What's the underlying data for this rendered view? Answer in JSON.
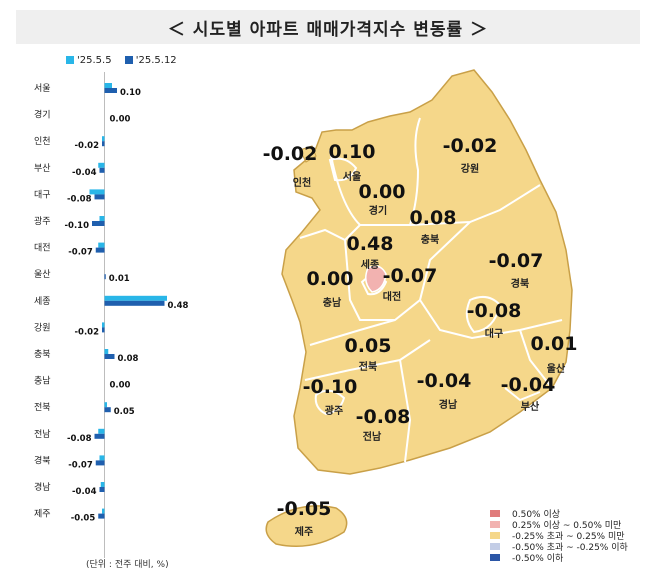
{
  "title": "＜ 시도별 아파트 매매가격지수 변동률 ＞",
  "colors": {
    "series_prev": "#29b6e8",
    "series_curr": "#1f5fae",
    "map_fill": "#f5d78a",
    "map_stroke": "#c9a048",
    "sejong_fill": "#f2b2b0",
    "province_border": "#ffffff"
  },
  "chart_data": [
    {
      "type": "bar",
      "orientation": "horizontal",
      "categories": [
        "서울",
        "경기",
        "인천",
        "부산",
        "대구",
        "광주",
        "대전",
        "울산",
        "세종",
        "강원",
        "충북",
        "충남",
        "전북",
        "전남",
        "경북",
        "경남",
        "제주"
      ],
      "series": [
        {
          "name": "'25.5.5",
          "values": [
            0.06,
            0.0,
            -0.02,
            -0.05,
            -0.12,
            -0.04,
            -0.05,
            0.0,
            0.5,
            -0.02,
            0.03,
            0.0,
            0.02,
            -0.05,
            -0.04,
            -0.03,
            -0.02
          ]
        },
        {
          "name": "'25.5.12",
          "values": [
            0.1,
            0.0,
            -0.02,
            -0.04,
            -0.08,
            -0.1,
            -0.07,
            0.01,
            0.48,
            -0.02,
            0.08,
            0.0,
            0.05,
            -0.08,
            -0.07,
            -0.04,
            -0.05
          ]
        }
      ],
      "value_labels": [
        "0.10",
        "0.00",
        "-0.02",
        "-0.04",
        "-0.08",
        "-0.10",
        "-0.07",
        "0.01",
        "0.48",
        "-0.02",
        "0.08",
        "0.00",
        "0.05",
        "-0.08",
        "-0.07",
        "-0.04",
        "-0.05"
      ],
      "note": "(단위 : 전주 대비, %)"
    }
  ],
  "map": {
    "regions": [
      {
        "name": "서울",
        "value": "0.10"
      },
      {
        "name": "인천",
        "value": "-0.02"
      },
      {
        "name": "경기",
        "value": "0.00"
      },
      {
        "name": "강원",
        "value": "-0.02"
      },
      {
        "name": "충북",
        "value": "0.08"
      },
      {
        "name": "세종",
        "value": "0.48"
      },
      {
        "name": "대전",
        "value": "-0.07"
      },
      {
        "name": "충남",
        "value": "0.00"
      },
      {
        "name": "경북",
        "value": "-0.07"
      },
      {
        "name": "대구",
        "value": "-0.08"
      },
      {
        "name": "전북",
        "value": "0.05"
      },
      {
        "name": "울산",
        "value": "0.01"
      },
      {
        "name": "광주",
        "value": "-0.10"
      },
      {
        "name": "전남",
        "value": "-0.08"
      },
      {
        "name": "경남",
        "value": "-0.04"
      },
      {
        "name": "부산",
        "value": "-0.04"
      },
      {
        "name": "제주",
        "value": "-0.05"
      }
    ],
    "legend": [
      {
        "label": "0.50% 이상",
        "color": "#e07b7b"
      },
      {
        "label": "0.25% 이상 ~ 0.50% 미만",
        "color": "#f2b2b0"
      },
      {
        "label": "-0.25% 초과 ~ 0.25% 미만",
        "color": "#f5d78a"
      },
      {
        "label": "-0.50% 초과 ~ -0.25% 이하",
        "color": "#c3cde6"
      },
      {
        "label": "-0.50% 이하",
        "color": "#2b56a6"
      }
    ]
  }
}
